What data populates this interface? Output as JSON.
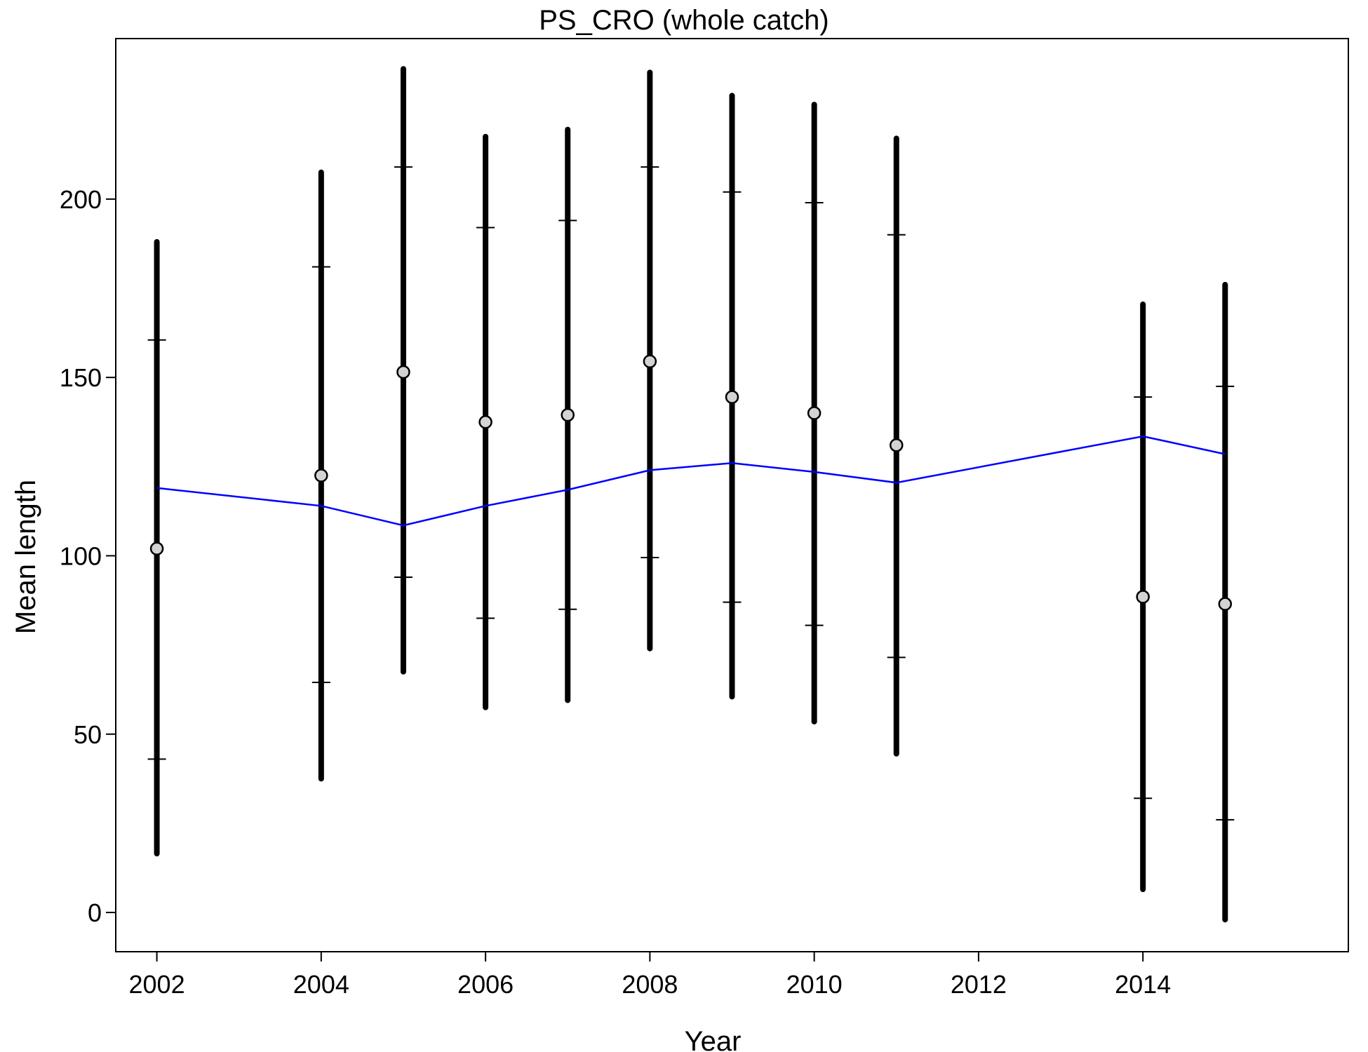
{
  "chart_data": {
    "type": "line",
    "title": "PS_CRO (whole catch)",
    "xlabel": "Year",
    "ylabel": "Mean length",
    "xlim": [
      2001.5,
      2016.5
    ],
    "ylim": [
      -11,
      245
    ],
    "x_ticks": [
      2002,
      2004,
      2006,
      2008,
      2010,
      2012,
      2014
    ],
    "x_tick_labels": [
      "2002",
      "2004",
      "2006",
      "2008",
      "2010",
      "2012",
      "2014"
    ],
    "y_ticks": [
      0,
      50,
      100,
      150,
      200
    ],
    "y_tick_labels": [
      "0",
      "50",
      "100",
      "150",
      "200"
    ],
    "grid": false,
    "legend": "none",
    "colors": {
      "expected_line": "#0000ff",
      "intervals": "#000000",
      "points_fill": "#d3d3d3",
      "points_stroke": "#000000"
    },
    "series": [
      {
        "kind": "observed",
        "x": [
          2002,
          2004,
          2005,
          2006,
          2007,
          2008,
          2009,
          2010,
          2011,
          2014,
          2015
        ],
        "values": [
          102,
          122.5,
          151.5,
          137.5,
          139.5,
          154.5,
          144.5,
          140,
          131,
          88.5,
          86.5
        ],
        "outer_low": [
          16.5,
          37.5,
          67.5,
          57.5,
          59.5,
          74,
          60.5,
          53.5,
          44.5,
          6.5,
          -2
        ],
        "outer_high": [
          188,
          207.5,
          236.5,
          217.5,
          219.5,
          235.5,
          229,
          226.5,
          217,
          170.5,
          176
        ],
        "inner_low": [
          43,
          64.5,
          94,
          82.5,
          85,
          99.5,
          87,
          80.5,
          71.5,
          32,
          26
        ],
        "inner_high": [
          160.5,
          181,
          209,
          192,
          194,
          209,
          202,
          199,
          190,
          144.5,
          147.5
        ]
      },
      {
        "kind": "expected",
        "x": [
          2002,
          2004,
          2005,
          2006,
          2007,
          2008,
          2009,
          2010,
          2011,
          2014,
          2015
        ],
        "values": [
          119,
          114,
          108.5,
          114,
          118.5,
          124,
          126,
          123.5,
          120.5,
          133.5,
          128.5
        ]
      }
    ]
  }
}
